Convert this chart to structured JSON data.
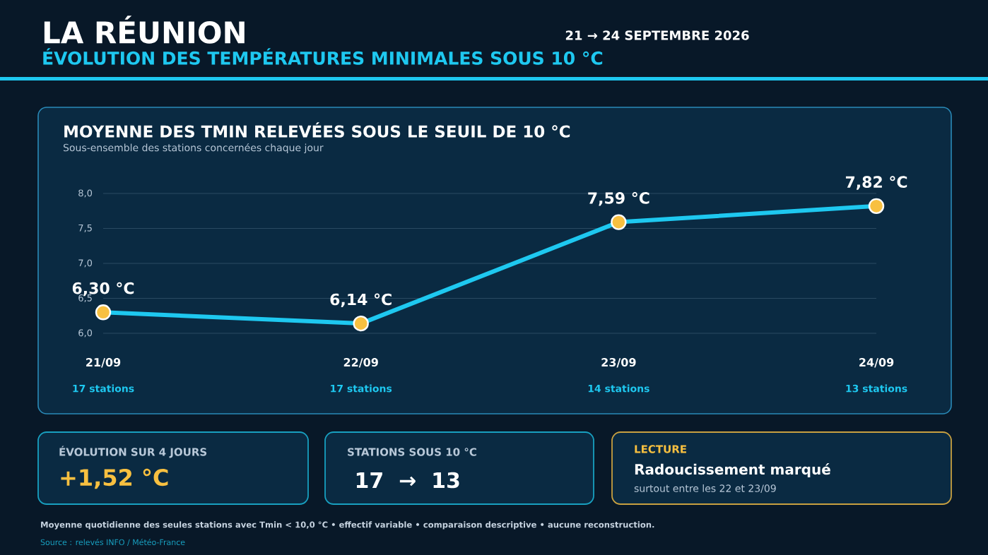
{
  "chart_data": {
    "type": "line",
    "title": "LA RÉUNION",
    "subtitle": "ÉVOLUTION DES TEMPÉRATURES MINIMALES SOUS 10 °C",
    "categories": [
      "21/09",
      "22/09",
      "23/09",
      "24/09"
    ],
    "series": [
      {
        "color": "#1ec8f0",
        "values": [
          6.3,
          6.14,
          7.59,
          7.82
        ],
        "value_labels": [
          "6,30 °C",
          "6,14 °C",
          "7,59 °C",
          "7,82 °C"
        ]
      }
    ],
    "ylim": [
      6.0,
      8.0
    ],
    "yticks": [
      {
        "value": 6.0,
        "label": "6,0"
      },
      {
        "value": 6.5,
        "label": "6,5"
      },
      {
        "value": 7.0,
        "label": "7,0"
      },
      {
        "value": 7.5,
        "label": "7,5"
      },
      {
        "value": 8.0,
        "label": "8,0"
      }
    ],
    "grid": "y",
    "marker": "circle",
    "line_style": "solid",
    "annotations": [
      "21 → 24 SEPTEMBRE 2026",
      "MOYENNE DES TMIN RELEVÉES SOUS LE SEUIL DE 10 °C",
      "Sous-ensemble des stations concernées chaque jour",
      "17 stations",
      "17 stations",
      "14 stations",
      "13 stations",
      "ÉVOLUTION SUR 4 JOURS",
      "+1,52 °C",
      "STATIONS SOUS 10 °C",
      "17  →  13",
      "LECTURE",
      "Radoucissement marqué",
      "surtout entre les 22 et 23/09",
      "Moyenne quotidienne des seules stations avec Tmin < 10,0 °C • effectif variable • comparaison descriptive • aucune reconstruction.",
      "Source : relevés INFO / Météo-France"
    ]
  }
}
